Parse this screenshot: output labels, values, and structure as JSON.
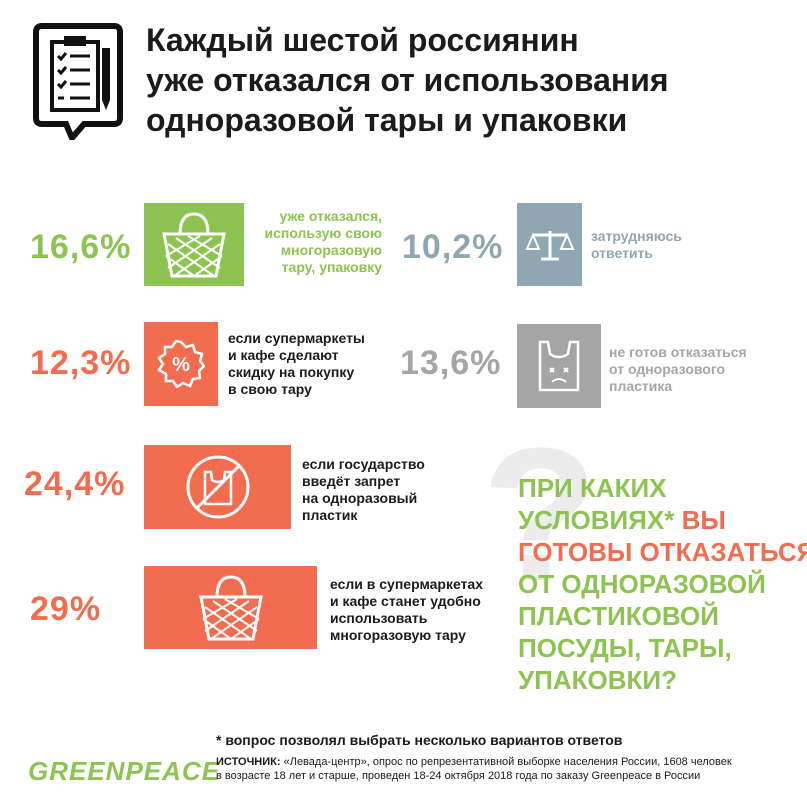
{
  "title": {
    "lines": [
      "Каждый шестой россиянин",
      "уже отказался от использования",
      "одноразовой тары и упаковки"
    ]
  },
  "stats": [
    {
      "value": "16,6%",
      "label_lines": [
        "уже отказался,",
        "использую свою",
        "многоразовую",
        "тару, упаковку"
      ],
      "icon": "string-bag-icon",
      "color": "#8dc351"
    },
    {
      "value": "10,2%",
      "label_lines": [
        "затрудняюсь",
        "ответить"
      ],
      "icon": "scales-icon",
      "color": "#8fa7b2"
    },
    {
      "value": "12,3%",
      "label_lines": [
        "если супермаркеты",
        "и кафе сделают",
        "скидку на покупку",
        "в свою тару"
      ],
      "icon": "percent-badge-icon",
      "color": "#f26c4f"
    },
    {
      "value": "13,6%",
      "label_lines": [
        "не готов отказаться",
        "от одноразового",
        "пластика"
      ],
      "icon": "sad-plastic-bag-icon",
      "color": "#a5a5a5"
    },
    {
      "value": "24,4%",
      "label_lines": [
        "если государство",
        "введёт запрет",
        "на одноразовый",
        "пластик"
      ],
      "icon": "no-plastic-bag-icon",
      "color": "#f26c4f"
    },
    {
      "value": "29%",
      "label_lines": [
        "если в супермаркетах",
        "и кафе станет удобно",
        "использовать",
        "многоразовую тару"
      ],
      "icon": "string-bag-icon",
      "color": "#f26c4f"
    }
  ],
  "question": {
    "line1": "ПРИ КАКИХ",
    "line2_a": "УСЛОВИЯХ* ",
    "line2_b": "ВЫ",
    "line3": "ГОТОВЫ ОТКАЗАТЬСЯ",
    "line4": "ОТ ОДНОРАЗОВОЙ",
    "line5": "ПЛАСТИКОВОЙ",
    "line6": "ПОСУДЫ, ТАРЫ,",
    "line7": "УПАКОВКИ?"
  },
  "footnote": "* вопрос позволял выбрать несколько вариантов ответов",
  "logo": "GREENPEACE",
  "source": {
    "label": "ИСТОЧНИК:",
    "line1": " «Левада-центр», опрос по репрезентативной выборке населения России, 1608 человек",
    "line2": "в возрасте 18 лет и старше, проведен 18-24 октября 2018 года по заказу Greenpeace в России"
  },
  "colors": {
    "green": "#8dc351",
    "orange": "#f26c4f",
    "steel": "#8fa7b2",
    "grey": "#a5a5a5"
  }
}
